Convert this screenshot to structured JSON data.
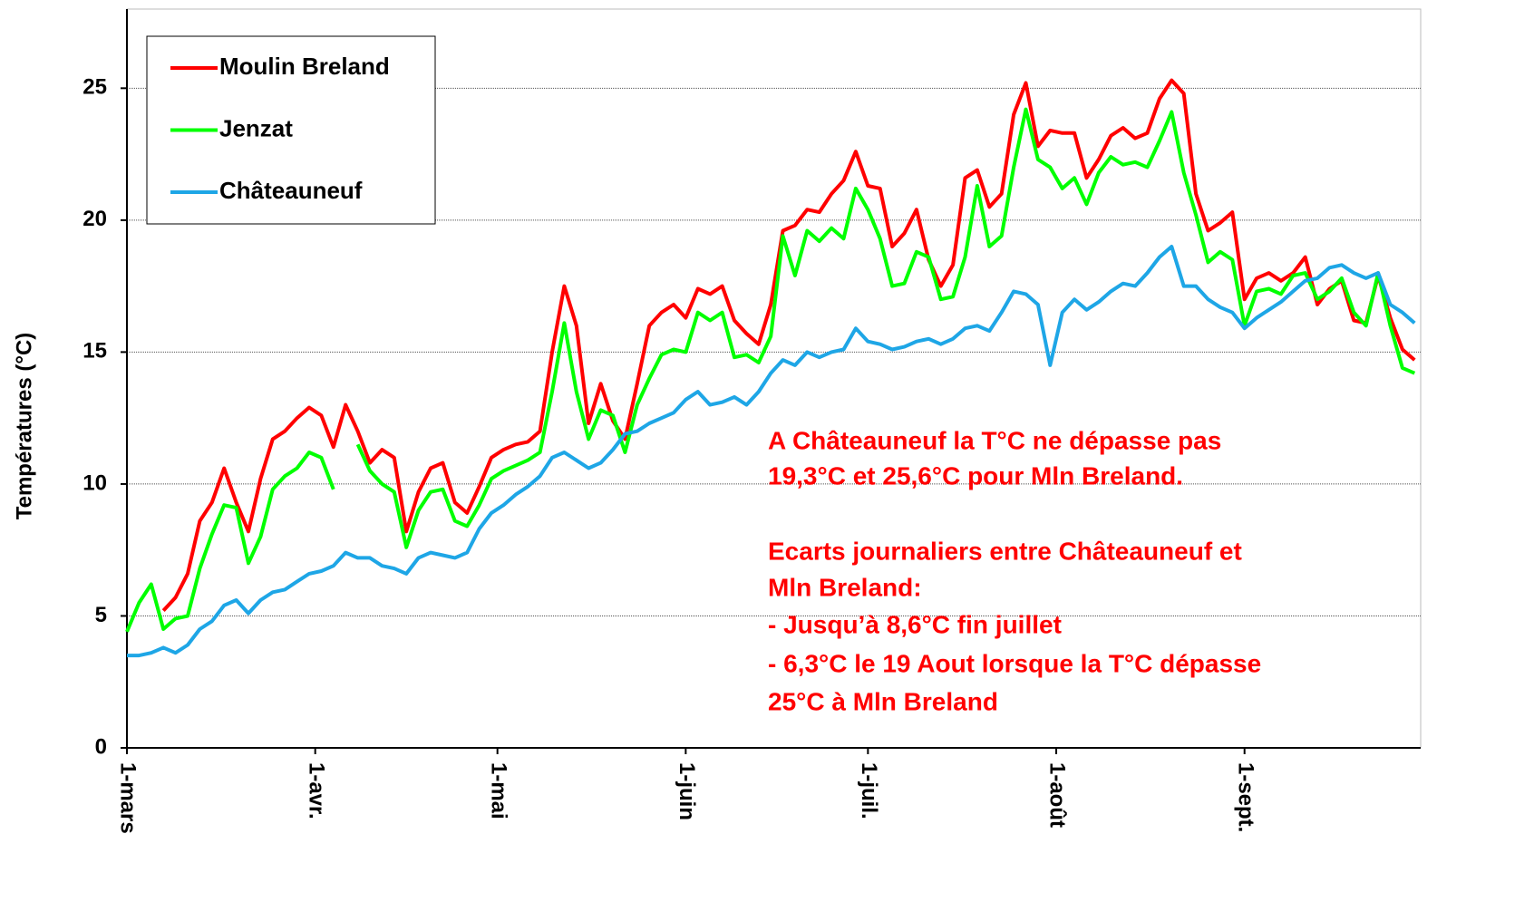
{
  "chart_data": {
    "type": "line",
    "y_label": "Températures (°C)",
    "x": [
      0,
      2,
      4,
      6,
      8,
      10,
      12,
      14,
      16,
      18,
      20,
      22,
      24,
      26,
      28,
      30,
      32,
      34,
      36,
      38,
      40,
      42,
      44,
      46,
      48,
      50,
      52,
      54,
      56,
      58,
      60,
      62,
      64,
      66,
      68,
      70,
      72,
      74,
      76,
      78,
      80,
      82,
      84,
      86,
      88,
      90,
      92,
      94,
      96,
      98,
      100,
      102,
      104,
      106,
      108,
      110,
      112,
      114,
      116,
      118,
      120,
      122,
      124,
      126,
      128,
      130,
      132,
      134,
      136,
      138,
      140,
      142,
      144,
      146,
      148,
      150,
      152,
      154,
      156,
      158,
      160,
      162,
      164,
      166,
      168,
      170,
      172,
      174,
      176,
      178,
      180,
      182,
      184,
      186,
      188,
      190,
      192,
      194,
      196,
      198,
      200,
      202,
      204,
      206,
      208,
      210,
      212
    ],
    "xlim": [
      0,
      213
    ],
    "xticks": [
      {
        "value": 0,
        "label": "1-mars"
      },
      {
        "value": 31,
        "label": "1-avr."
      },
      {
        "value": 61,
        "label": "1-mai"
      },
      {
        "value": 92,
        "label": "1-juin"
      },
      {
        "value": 122,
        "label": "1-juil."
      },
      {
        "value": 153,
        "label": "1-août"
      },
      {
        "value": 184,
        "label": "1-sept."
      }
    ],
    "ylim": [
      0,
      28
    ],
    "yticks": [
      0,
      5,
      10,
      15,
      20,
      25
    ],
    "grid": true,
    "legend": "upper left",
    "series": [
      {
        "name": "Moulin Breland",
        "color": "#ff0000",
        "values": [
          null,
          null,
          null,
          5.2,
          5.7,
          6.6,
          8.6,
          9.3,
          10.6,
          9.3,
          8.2,
          10.2,
          11.7,
          12.0,
          12.5,
          12.9,
          12.6,
          11.4,
          13.0,
          12.0,
          10.8,
          11.3,
          11.0,
          8.2,
          9.7,
          10.6,
          10.8,
          9.3,
          8.9,
          9.9,
          11.0,
          11.3,
          11.5,
          11.6,
          12.0,
          15.0,
          17.5,
          16.0,
          12.3,
          13.8,
          12.4,
          11.7,
          13.8,
          16.0,
          16.5,
          16.8,
          16.3,
          17.4,
          17.2,
          17.5,
          16.2,
          15.7,
          15.3,
          16.8,
          19.6,
          19.8,
          20.4,
          20.3,
          21.0,
          21.5,
          22.6,
          21.3,
          21.2,
          19.0,
          19.5,
          20.4,
          18.5,
          17.5,
          18.3,
          21.6,
          21.9,
          20.5,
          21.0,
          24.0,
          25.2,
          22.8,
          23.4,
          23.3,
          23.3,
          21.6,
          22.3,
          23.2,
          23.5,
          23.1,
          23.3,
          24.6,
          25.3,
          24.8,
          21.0,
          19.6,
          19.9,
          20.3,
          17.0,
          17.8,
          18.0,
          17.7,
          18.0,
          18.6,
          16.8,
          17.4,
          17.7,
          16.2,
          16.1,
          17.9,
          16.3,
          15.1,
          14.7
        ]
      },
      {
        "name": "Jenzat",
        "color": "#00ff00",
        "values": [
          4.4,
          5.5,
          6.2,
          4.5,
          4.9,
          5.0,
          6.8,
          8.1,
          9.2,
          9.1,
          7.0,
          8.0,
          9.8,
          10.3,
          10.6,
          11.2,
          11.0,
          9.8,
          null,
          11.5,
          10.5,
          10.0,
          9.7,
          7.6,
          9.0,
          9.7,
          9.8,
          8.6,
          8.4,
          9.2,
          10.2,
          10.5,
          10.7,
          10.9,
          11.2,
          13.5,
          16.1,
          13.5,
          11.7,
          12.8,
          12.6,
          11.2,
          13.0,
          14.0,
          14.9,
          15.1,
          15.0,
          16.5,
          16.2,
          16.5,
          14.8,
          14.9,
          14.6,
          15.6,
          19.4,
          17.9,
          19.6,
          19.2,
          19.7,
          19.3,
          21.2,
          20.4,
          19.3,
          17.5,
          17.6,
          18.8,
          18.6,
          17.0,
          17.1,
          18.6,
          21.3,
          19.0,
          19.4,
          22.0,
          24.2,
          22.3,
          22.0,
          21.2,
          21.6,
          20.6,
          21.8,
          22.4,
          22.1,
          22.2,
          22.0,
          23.0,
          24.1,
          21.8,
          20.2,
          18.4,
          18.8,
          18.5,
          16.0,
          17.3,
          17.4,
          17.2,
          17.9,
          18.0,
          17.0,
          17.3,
          17.8,
          16.5,
          16.0,
          18.0,
          16.0,
          14.4,
          14.2
        ]
      },
      {
        "name": "Châteauneuf",
        "color": "#1ea6e6",
        "values": [
          3.5,
          3.5,
          3.6,
          3.8,
          3.6,
          3.9,
          4.5,
          4.8,
          5.4,
          5.6,
          5.1,
          5.6,
          5.9,
          6.0,
          6.3,
          6.6,
          6.7,
          6.9,
          7.4,
          7.2,
          7.2,
          6.9,
          6.8,
          6.6,
          7.2,
          7.4,
          7.3,
          7.2,
          7.4,
          8.3,
          8.9,
          9.2,
          9.6,
          9.9,
          10.3,
          11.0,
          11.2,
          10.9,
          10.6,
          10.8,
          11.3,
          11.9,
          12.0,
          12.3,
          12.5,
          12.7,
          13.2,
          13.5,
          13.0,
          13.1,
          13.3,
          13.0,
          13.5,
          14.2,
          14.7,
          14.5,
          15.0,
          14.8,
          15.0,
          15.1,
          15.9,
          15.4,
          15.3,
          15.1,
          15.2,
          15.4,
          15.5,
          15.3,
          15.5,
          15.9,
          16.0,
          15.8,
          16.5,
          17.3,
          17.2,
          16.8,
          14.5,
          16.5,
          17.0,
          16.6,
          16.9,
          17.3,
          17.6,
          17.5,
          18.0,
          18.6,
          19.0,
          17.5,
          17.5,
          17.0,
          16.7,
          16.5,
          15.9,
          16.3,
          16.6,
          16.9,
          17.3,
          17.7,
          17.8,
          18.2,
          18.3,
          18.0,
          17.8,
          18.0,
          16.8,
          16.5,
          16.1
        ]
      }
    ],
    "annotation": [
      "A Châteauneuf la T°C ne dépasse pas",
      "19,3°C et 25,6°C pour Mln Breland.",
      "Ecarts journaliers entre Châteauneuf et",
      "Mln Breland:",
      "- Jusqu’à 8,6°C fin juillet",
      "- 6,3°C le 19 Aout lorsque la T°C dépasse",
      "25°C à Mln Breland"
    ]
  }
}
